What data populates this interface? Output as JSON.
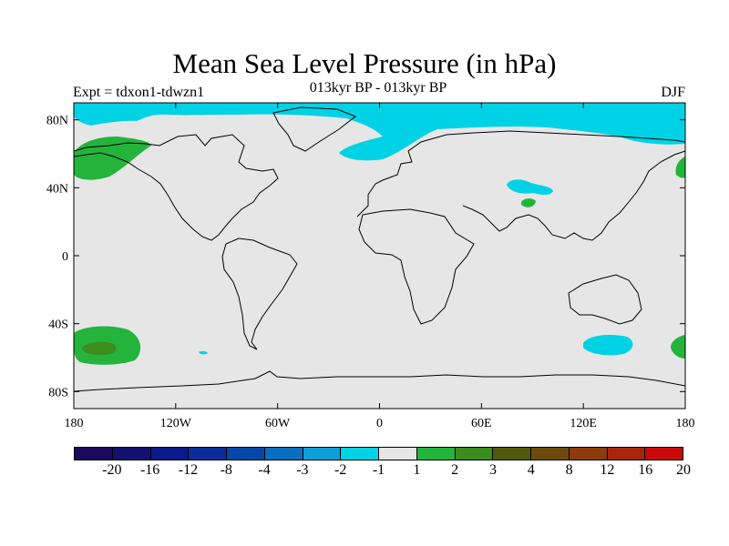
{
  "title": "Mean Sea Level Pressure (in hPa)",
  "subtitle": "013kyr BP - 013kyr BP",
  "experiment": "Expt = tdxon1-tdwzn1",
  "season": "DJF",
  "map": {
    "projection": "cylindrical-equidistant",
    "lon_range": [
      -180,
      180
    ],
    "lat_range": [
      -90,
      90
    ],
    "background_color": "#e6e6e6",
    "x_ticks": [
      {
        "lon": -180,
        "label": "180"
      },
      {
        "lon": -120,
        "label": "120W"
      },
      {
        "lon": -60,
        "label": "60W"
      },
      {
        "lon": 0,
        "label": "0"
      },
      {
        "lon": 60,
        "label": "60E"
      },
      {
        "lon": 120,
        "label": "120E"
      },
      {
        "lon": 180,
        "label": "180"
      }
    ],
    "y_ticks": [
      {
        "lat": 80,
        "label": "80N"
      },
      {
        "lat": 40,
        "label": "40N"
      },
      {
        "lat": 0,
        "label": "0"
      },
      {
        "lat": -40,
        "label": "40S"
      },
      {
        "lat": -80,
        "label": "80S"
      }
    ]
  },
  "colorbar": {
    "colors": [
      "#1a0a5e",
      "#14106e",
      "#0a1a8a",
      "#0a2d9a",
      "#0548a8",
      "#0a6ec0",
      "#109ed8",
      "#00d2e6",
      "#e6e6e6",
      "#24b43c",
      "#3c8c1e",
      "#505a0a",
      "#6e4a0a",
      "#8c3c0a",
      "#a8260a",
      "#c80a0a"
    ],
    "labels": [
      "-20",
      "-16",
      "-12",
      "-8",
      "-4",
      "-3",
      "-2",
      "-1",
      "1",
      "2",
      "3",
      "4",
      "8",
      "12",
      "16",
      "20"
    ]
  }
}
